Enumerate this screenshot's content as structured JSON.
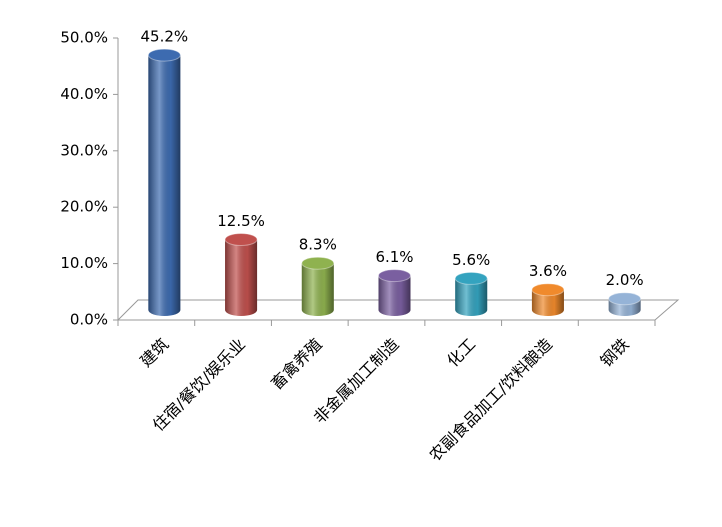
{
  "chart_data": {
    "type": "bar",
    "categories": [
      "建筑",
      "住宿/餐饮/娱乐业",
      "畜禽养殖",
      "非金属加工制造",
      "化工",
      "农副食品加工/饮料酿造",
      "钢铁"
    ],
    "values": [
      45.2,
      12.5,
      8.3,
      6.1,
      5.6,
      3.6,
      2.0
    ],
    "value_labels": [
      "45.2%",
      "12.5%",
      "8.3%",
      "6.1%",
      "5.6%",
      "3.6%",
      "2.0%"
    ],
    "colors": [
      "#3d6bb0",
      "#c0504d",
      "#8fb24f",
      "#7a5fa0",
      "#34a3bf",
      "#f08a2c",
      "#95b3d7"
    ],
    "ylim": [
      0,
      50
    ],
    "yticks": [
      {
        "value": 0,
        "label": "0.0%"
      },
      {
        "value": 10,
        "label": "10.0%"
      },
      {
        "value": 20,
        "label": "20.0%"
      },
      {
        "value": 30,
        "label": "30.0%"
      },
      {
        "value": 40,
        "label": "40.0%"
      },
      {
        "value": 50,
        "label": "50.0%"
      }
    ]
  }
}
